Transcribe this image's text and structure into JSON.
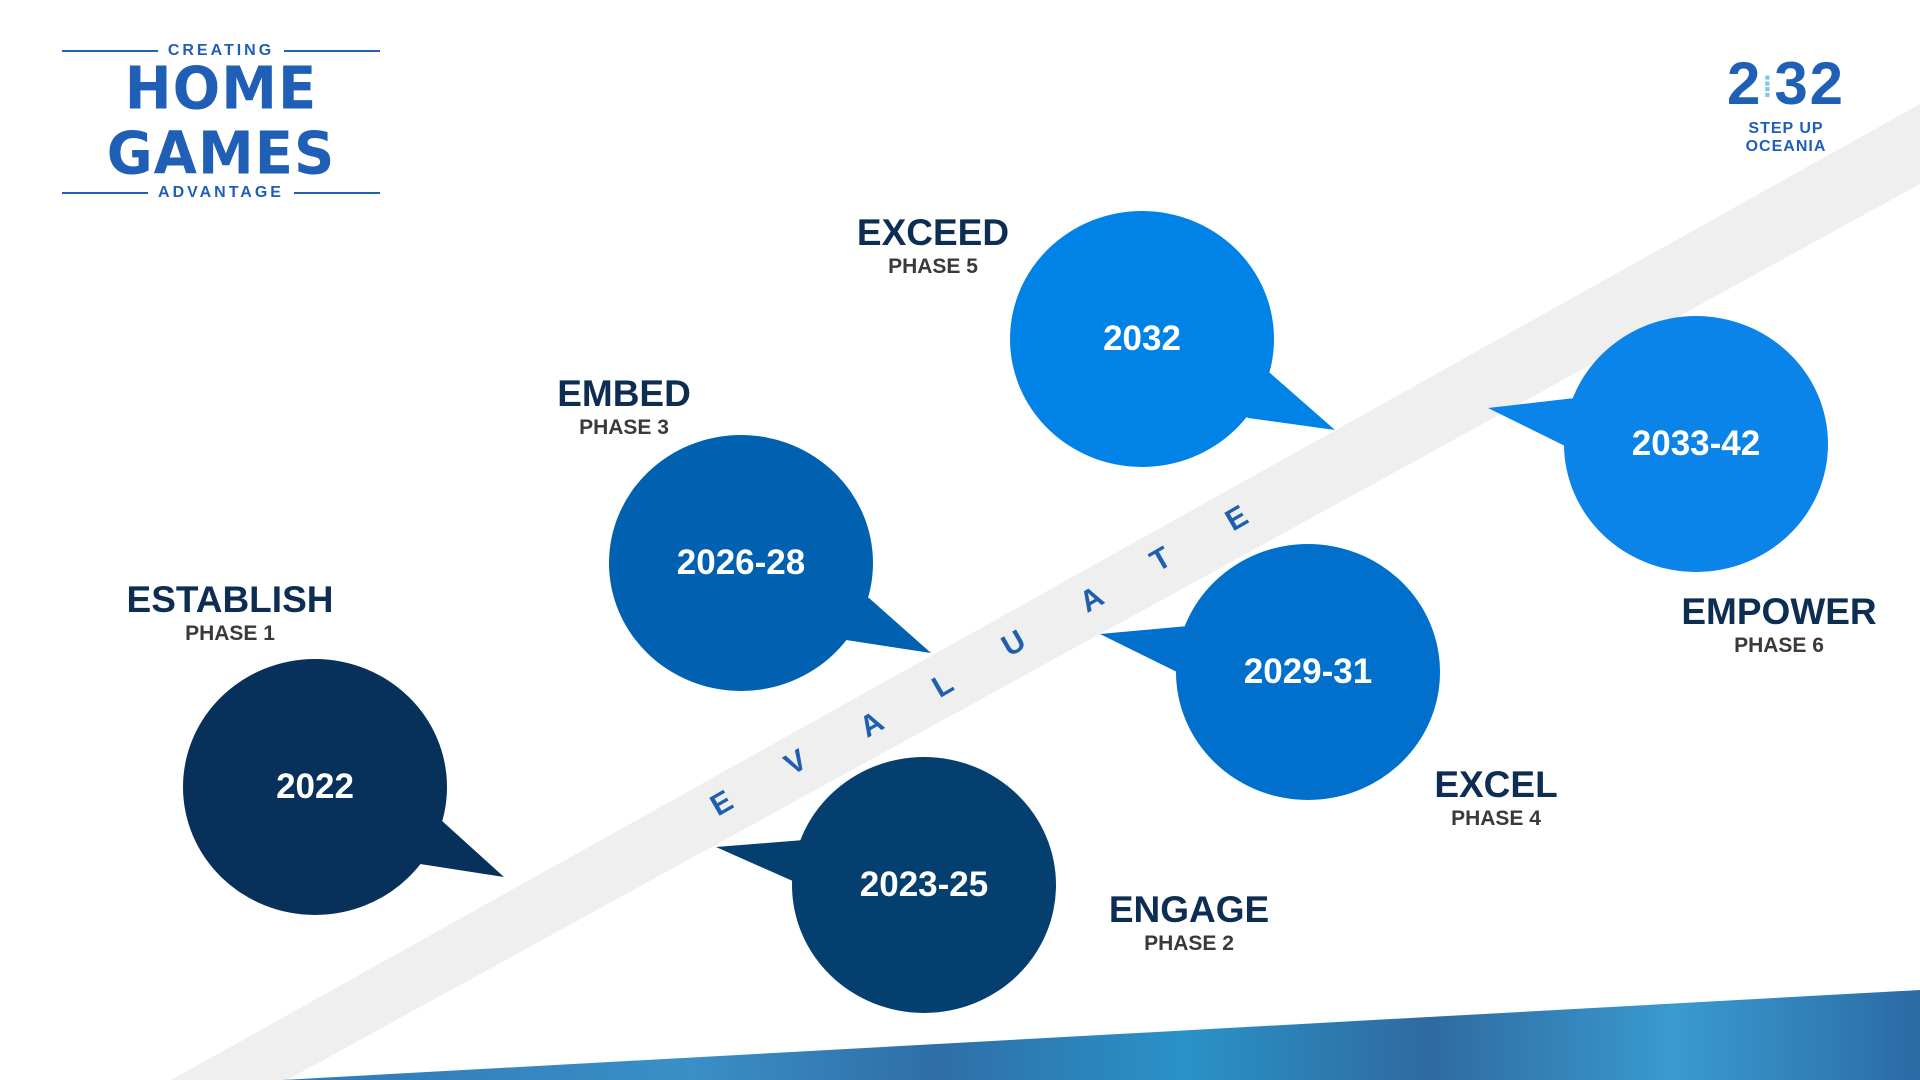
{
  "logo_left": {
    "top": "CREATING",
    "main": "HOME GAMES",
    "bottom": "ADVANTAGE"
  },
  "logo_right": {
    "main": "2032",
    "left_digit": "2",
    "right_digits": "32",
    "tagline": "STEP UP OCEANIA"
  },
  "band_letters": [
    "E",
    "V",
    "A",
    "L",
    "U",
    "A",
    "T",
    "E"
  ],
  "phases": [
    {
      "name": "ESTABLISH",
      "phase": "PHASE 1",
      "years": "2022",
      "color": "#07305a"
    },
    {
      "name": "ENGAGE",
      "phase": "PHASE 2",
      "years": "2023-25",
      "color": "#053f70"
    },
    {
      "name": "EMBED",
      "phase": "PHASE 3",
      "years": "2026-28",
      "color": "#0061b0"
    },
    {
      "name": "EXCEL",
      "phase": "PHASE 4",
      "years": "2029-31",
      "color": "#0070cc"
    },
    {
      "name": "EXCEED",
      "phase": "PHASE 5",
      "years": "2032",
      "color": "#0082e6"
    },
    {
      "name": "EMPOWER",
      "phase": "PHASE 6",
      "years": "2033-42",
      "color": "#0a84e8"
    }
  ]
}
